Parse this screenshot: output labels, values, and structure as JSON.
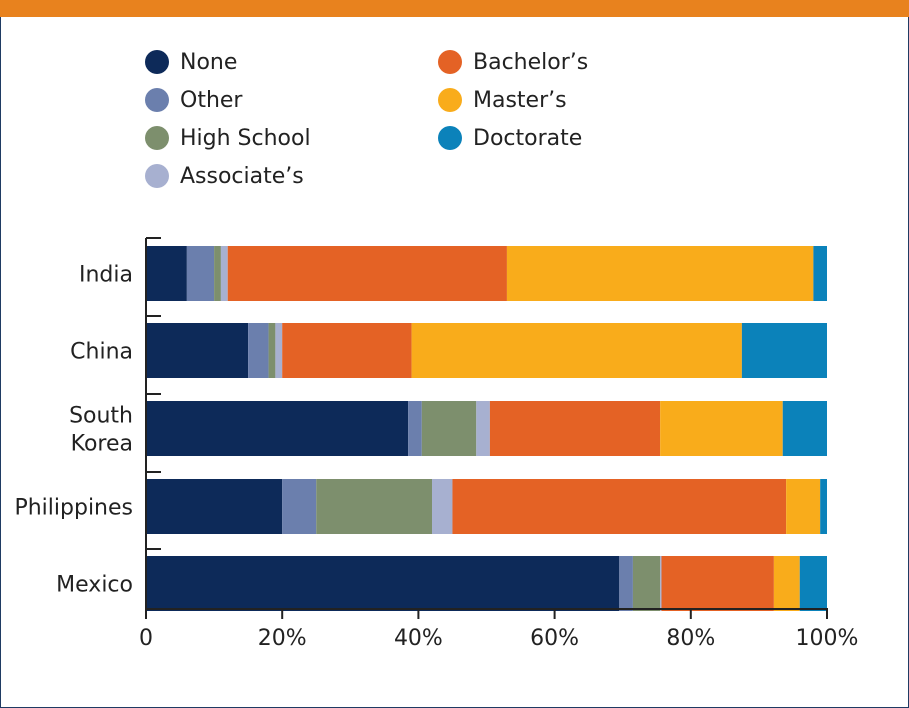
{
  "chart_data": {
    "type": "bar",
    "orientation": "horizontal",
    "stacked": true,
    "categories": [
      "India",
      "China",
      "South Korea",
      "Philippines",
      "Mexico"
    ],
    "category_lines": [
      [
        "India"
      ],
      [
        "China"
      ],
      [
        "South",
        "Korea"
      ],
      [
        "Philippines"
      ],
      [
        "Mexico"
      ]
    ],
    "series": [
      {
        "name": "None",
        "color": "#0d2a59",
        "values": [
          6,
          15,
          38.5,
          20,
          69.5
        ]
      },
      {
        "name": "Other",
        "color": "#6b7fad",
        "values": [
          4,
          3,
          2,
          5,
          2
        ]
      },
      {
        "name": "High School",
        "color": "#7d8f6d",
        "values": [
          1,
          1,
          8,
          17,
          4
        ]
      },
      {
        "name": "Associate’s",
        "color": "#a7b0d0",
        "values": [
          1,
          1,
          2,
          3,
          0.2
        ]
      },
      {
        "name": "Bachelor’s",
        "color": "#e46225",
        "values": [
          41,
          19,
          25,
          49,
          16.5
        ]
      },
      {
        "name": "Master’s",
        "color": "#f9ac1b",
        "values": [
          45,
          48.5,
          18,
          5,
          3.8
        ]
      },
      {
        "name": "Doctorate",
        "color": "#0b82ba",
        "values": [
          2,
          12.5,
          6.5,
          1,
          4
        ]
      }
    ],
    "x_ticks": [
      "0",
      "20%",
      "40%",
      "60%",
      "80%",
      "100%"
    ],
    "xlim": [
      0,
      100
    ],
    "xlabel": "",
    "ylabel": "",
    "title": "",
    "grid": false,
    "legend_position": "top"
  },
  "legend": {
    "items": [
      {
        "label": "None",
        "color": "#0d2a59",
        "col": 0,
        "row": 0
      },
      {
        "label": "Other",
        "color": "#6b7fad",
        "col": 0,
        "row": 1
      },
      {
        "label": "High School",
        "color": "#7d8f6d",
        "col": 0,
        "row": 2
      },
      {
        "label": "Associate’s",
        "color": "#a7b0d0",
        "col": 0,
        "row": 3
      },
      {
        "label": "Bachelor’s",
        "color": "#e46225",
        "col": 1,
        "row": 0
      },
      {
        "label": "Master’s",
        "color": "#f9ac1b",
        "col": 1,
        "row": 1
      },
      {
        "label": "Doctorate",
        "color": "#0b82ba",
        "col": 1,
        "row": 2
      }
    ]
  },
  "colors": {
    "top_bar": "#e8821e",
    "frame": "#1f3b63",
    "axis": "#222222"
  }
}
